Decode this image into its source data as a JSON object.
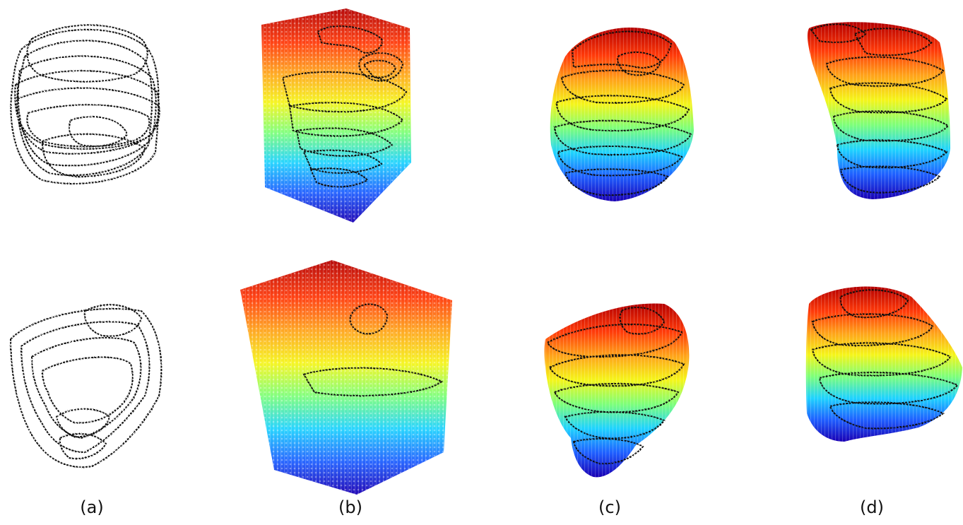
{
  "figure": {
    "rows": [
      "top",
      "bottom"
    ],
    "panels": [
      {
        "id": "a",
        "label": "(a)",
        "style": "contours-only"
      },
      {
        "id": "b",
        "label": "(b)",
        "style": "voxel-grid-colored"
      },
      {
        "id": "c",
        "label": "(c)",
        "style": "shaped-volume-colored"
      },
      {
        "id": "d",
        "label": "(d)",
        "style": "shaped-volume-colored"
      }
    ],
    "colormap": [
      "#1a00b4",
      "#1f5fff",
      "#1fd3ff",
      "#7dff7a",
      "#f5f51a",
      "#ffa31a",
      "#ff3a0a",
      "#b40000"
    ],
    "contour_color": "#111111"
  }
}
